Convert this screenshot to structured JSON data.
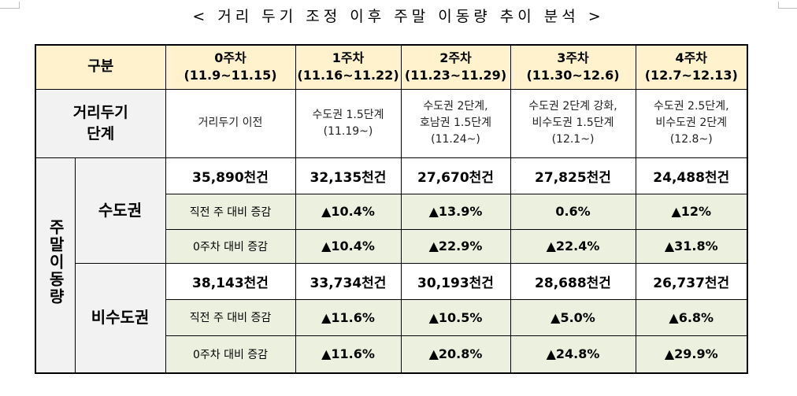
{
  "title": "< 거리 두기 조정 이후 주말 이동량 추이 분석 >",
  "header": {
    "gubun": "구분",
    "weeks": [
      {
        "label": "0주차",
        "range": "(11.9~11.15)"
      },
      {
        "label": "1주차",
        "range": "(11.16~11.22)"
      },
      {
        "label": "2주차",
        "range": "(11.23~11.29)"
      },
      {
        "label": "3주차",
        "range": "(11.30~12.6)"
      },
      {
        "label": "4주차",
        "range": "(12.7~12.13)"
      }
    ]
  },
  "stage": {
    "label_line1": "거리두기",
    "label_line2": "단계",
    "cells": [
      {
        "line1": "거리두기 이전",
        "line2": "",
        "date": ""
      },
      {
        "line1": "수도권 1.5단계",
        "line2": "",
        "date": "(11.19~)"
      },
      {
        "line1": "수도권 2단계,",
        "line2": "호남권 1.5단계",
        "date": "(11.24~)"
      },
      {
        "line1": "수도권 2단계 강화,",
        "line2": "비수도권 1.5단계",
        "date": "(12.1~)"
      },
      {
        "line1": "수도권 2.5단계,",
        "line2": "비수도권 2단계",
        "date": "(12.8~)"
      }
    ]
  },
  "mobility": {
    "group_label": "주말이동량",
    "capital": {
      "label": "수도권",
      "totals": [
        "35,890천건",
        "32,135천건",
        "27,670천건",
        "27,825천건",
        "24,488천건"
      ],
      "prev_label": "직전 주 대비 증감",
      "prev": [
        "▲10.4%",
        "▲13.9%",
        "0.6%",
        "▲12%"
      ],
      "base_label": "0주차 대비 증감",
      "base": [
        "▲10.4%",
        "▲22.9%",
        "▲22.4%",
        "▲31.8%"
      ]
    },
    "noncapital": {
      "label": "비수도권",
      "totals": [
        "38,143천건",
        "33,734천건",
        "30,193천건",
        "28,688천건",
        "26,737천건"
      ],
      "prev_label": "직전 주 대비 증감",
      "prev": [
        "▲11.6%",
        "▲10.5%",
        "▲5.0%",
        "▲6.8%"
      ],
      "base_label": "0주차 대비 증감",
      "base": [
        "▲11.6%",
        "▲20.8%",
        "▲24.8%",
        "▲29.9%"
      ]
    }
  }
}
